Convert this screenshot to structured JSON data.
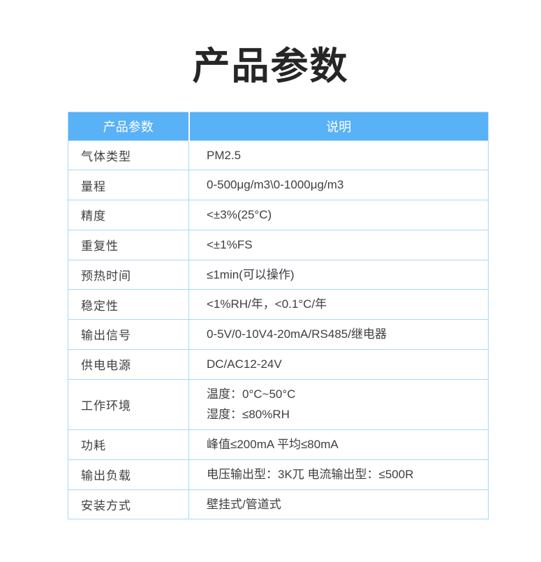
{
  "page": {
    "title": "产品参数"
  },
  "table": {
    "headers": [
      "产品参数",
      "说明"
    ],
    "rows": [
      {
        "param": "气体类型",
        "desc": "PM2.5"
      },
      {
        "param": "量程",
        "desc": "0-500μg/m3\\0-1000μg/m3"
      },
      {
        "param": "精度",
        "desc": "<±3%(25°C)"
      },
      {
        "param": "重复性",
        "desc": "<±1%FS"
      },
      {
        "param": "预热时间",
        "desc": "≤1min(可以操作)"
      },
      {
        "param": "稳定性",
        "desc": "<1%RH/年，<0.1°C/年"
      },
      {
        "param": "输出信号",
        "desc": "0-5V/0-10V4-20mA/RS485/继电器"
      },
      {
        "param": "供电电源",
        "desc": "DC/AC12-24V"
      },
      {
        "param": "工作环境",
        "desc": "温度：0°C~50°C\n湿度：≤80%RH"
      },
      {
        "param": "功耗",
        "desc": "峰值≤200mA 平均≤80mA"
      },
      {
        "param": "输出负载",
        "desc": "电压输出型：3K兀 电流输出型：≤500R"
      },
      {
        "param": "安装方式",
        "desc": "壁挂式/管道式"
      }
    ]
  },
  "colors": {
    "header_bg": "#59b1f6",
    "border": "#a8d9f8",
    "header_text": "#ffffff",
    "body_text": "#3f4040",
    "title_text": "#262626",
    "page_bg": "#ffffff"
  }
}
